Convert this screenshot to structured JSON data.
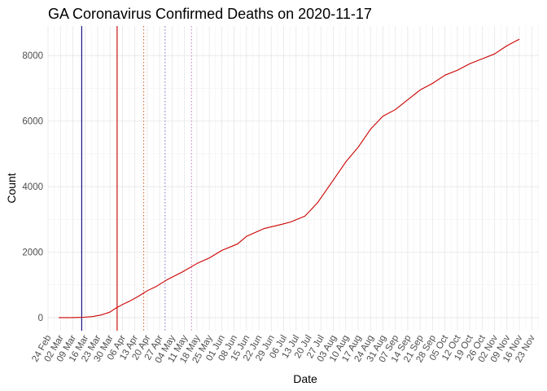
{
  "chart_data": {
    "type": "line",
    "title": "GA Coronavirus Confirmed Deaths on 2020-11-17",
    "xlabel": "Date",
    "ylabel": "Count",
    "xlim": [
      "2020-02-24",
      "2020-11-27"
    ],
    "ylim": [
      -400,
      8900
    ],
    "y_ticks": [
      0,
      2000,
      4000,
      6000,
      8000
    ],
    "x_ticks": [
      "24 Feb",
      "02 Mar",
      "09 Mar",
      "16 Mar",
      "23 Mar",
      "30 Mar",
      "06 Apr",
      "13 Apr",
      "20 Apr",
      "27 Apr",
      "04 May",
      "11 May",
      "18 May",
      "25 May",
      "01 Jun",
      "08 Jun",
      "15 Jun",
      "22 Jun",
      "29 Jun",
      "06 Jul",
      "13 Jul",
      "20 Jul",
      "27 Jul",
      "03 Aug",
      "10 Aug",
      "17 Aug",
      "24 Aug",
      "31 Aug",
      "07 Sep",
      "14 Sep",
      "21 Sep",
      "28 Sep",
      "05 Oct",
      "12 Oct",
      "19 Oct",
      "26 Oct",
      "02 Nov",
      "09 Nov",
      "16 Nov",
      "23 Nov"
    ],
    "x_tick_dates": [
      "2020-02-24",
      "2020-03-02",
      "2020-03-09",
      "2020-03-16",
      "2020-03-23",
      "2020-03-30",
      "2020-04-06",
      "2020-04-13",
      "2020-04-20",
      "2020-04-27",
      "2020-05-04",
      "2020-05-11",
      "2020-05-18",
      "2020-05-25",
      "2020-06-01",
      "2020-06-08",
      "2020-06-15",
      "2020-06-22",
      "2020-06-29",
      "2020-07-06",
      "2020-07-13",
      "2020-07-20",
      "2020-07-27",
      "2020-08-03",
      "2020-08-10",
      "2020-08-17",
      "2020-08-24",
      "2020-08-31",
      "2020-09-07",
      "2020-09-14",
      "2020-09-21",
      "2020-09-28",
      "2020-10-05",
      "2020-10-12",
      "2020-10-19",
      "2020-10-26",
      "2020-11-02",
      "2020-11-09",
      "2020-11-16",
      "2020-11-23"
    ],
    "grid": true,
    "series": [
      {
        "color": "#cc0000",
        "x": [
          "2020-03-01",
          "2020-03-08",
          "2020-03-12",
          "2020-03-15",
          "2020-03-20",
          "2020-03-25",
          "2020-03-30",
          "2020-04-02",
          "2020-04-06",
          "2020-04-10",
          "2020-04-15",
          "2020-04-20",
          "2020-04-25",
          "2020-05-01",
          "2020-05-10",
          "2020-05-18",
          "2020-05-25",
          "2020-06-01",
          "2020-06-10",
          "2020-06-15",
          "2020-06-25",
          "2020-07-05",
          "2020-07-10",
          "2020-07-18",
          "2020-07-25",
          "2020-08-03",
          "2020-08-10",
          "2020-08-17",
          "2020-08-24",
          "2020-08-31",
          "2020-09-07",
          "2020-09-14",
          "2020-09-21",
          "2020-09-28",
          "2020-10-05",
          "2020-10-12",
          "2020-10-19",
          "2020-10-26",
          "2020-11-02",
          "2020-11-09",
          "2020-11-16"
        ],
        "values": [
          0,
          0,
          5,
          10,
          30,
          80,
          170,
          280,
          400,
          500,
          650,
          820,
          950,
          1150,
          1400,
          1650,
          1820,
          2050,
          2250,
          2480,
          2720,
          2850,
          2920,
          3100,
          3500,
          4200,
          4750,
          5200,
          5750,
          6150,
          6350,
          6650,
          6950,
          7150,
          7400,
          7550,
          7750,
          7900,
          8050,
          8300,
          8500
        ]
      }
    ],
    "reference_lines": [
      {
        "x": "2020-03-14",
        "color": "#000080",
        "style": "solid"
      },
      {
        "x": "2020-04-03",
        "color": "#cc0000",
        "style": "solid"
      },
      {
        "x": "2020-04-18",
        "color": "#cc6633",
        "style": "dotted"
      },
      {
        "x": "2020-04-30",
        "color": "#8888cc",
        "style": "dotted"
      },
      {
        "x": "2020-05-15",
        "color": "#cc88cc",
        "style": "dotted"
      }
    ]
  }
}
